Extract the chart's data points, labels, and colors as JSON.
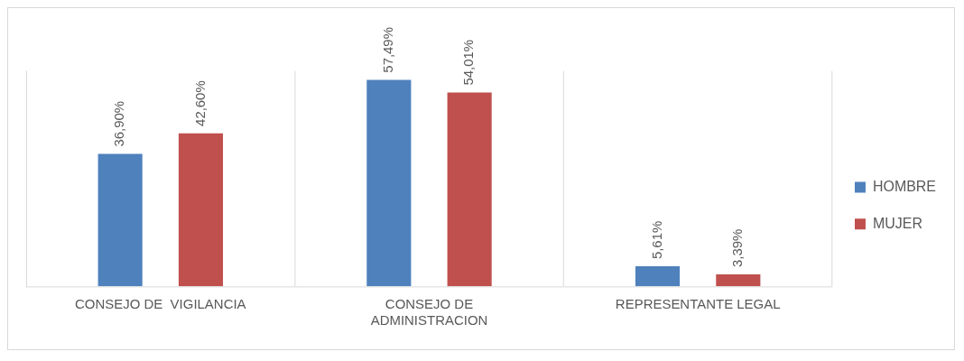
{
  "chart_data": {
    "type": "bar",
    "categories": [
      "CONSEJO DE  VIGILANCIA",
      "CONSEJO DE ADMINISTRACION",
      "REPRESENTANTE LEGAL"
    ],
    "series": [
      {
        "name": "HOMBRE",
        "color": "#4f81bd",
        "values": [
          36.9,
          57.49,
          5.61
        ],
        "value_labels": [
          "36,90%",
          "57,49%",
          "5,61%"
        ]
      },
      {
        "name": "MUJER",
        "color": "#c0504d",
        "values": [
          42.6,
          54.01,
          3.39
        ],
        "value_labels": [
          "42,60%",
          "54,01%",
          "3,39%"
        ]
      }
    ],
    "grid": "x",
    "legend": "right"
  }
}
